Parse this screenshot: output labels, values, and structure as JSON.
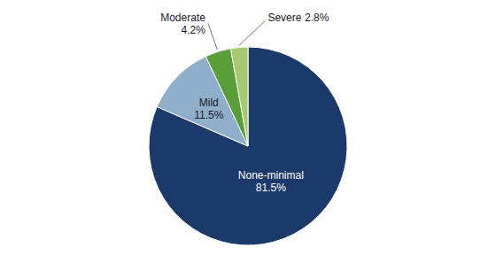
{
  "chart_data": {
    "type": "pie",
    "categories": [
      "None-minimal",
      "Mild",
      "Moderate",
      "Severe"
    ],
    "values": [
      81.5,
      11.5,
      4.2,
      2.8
    ],
    "value_labels": [
      "81.5%",
      "11.5%",
      "4.2%",
      "2.8%"
    ],
    "colors": [
      "#1b3a6b",
      "#8faec9",
      "#5a9e3a",
      "#a8c870"
    ],
    "data_labels": true
  }
}
